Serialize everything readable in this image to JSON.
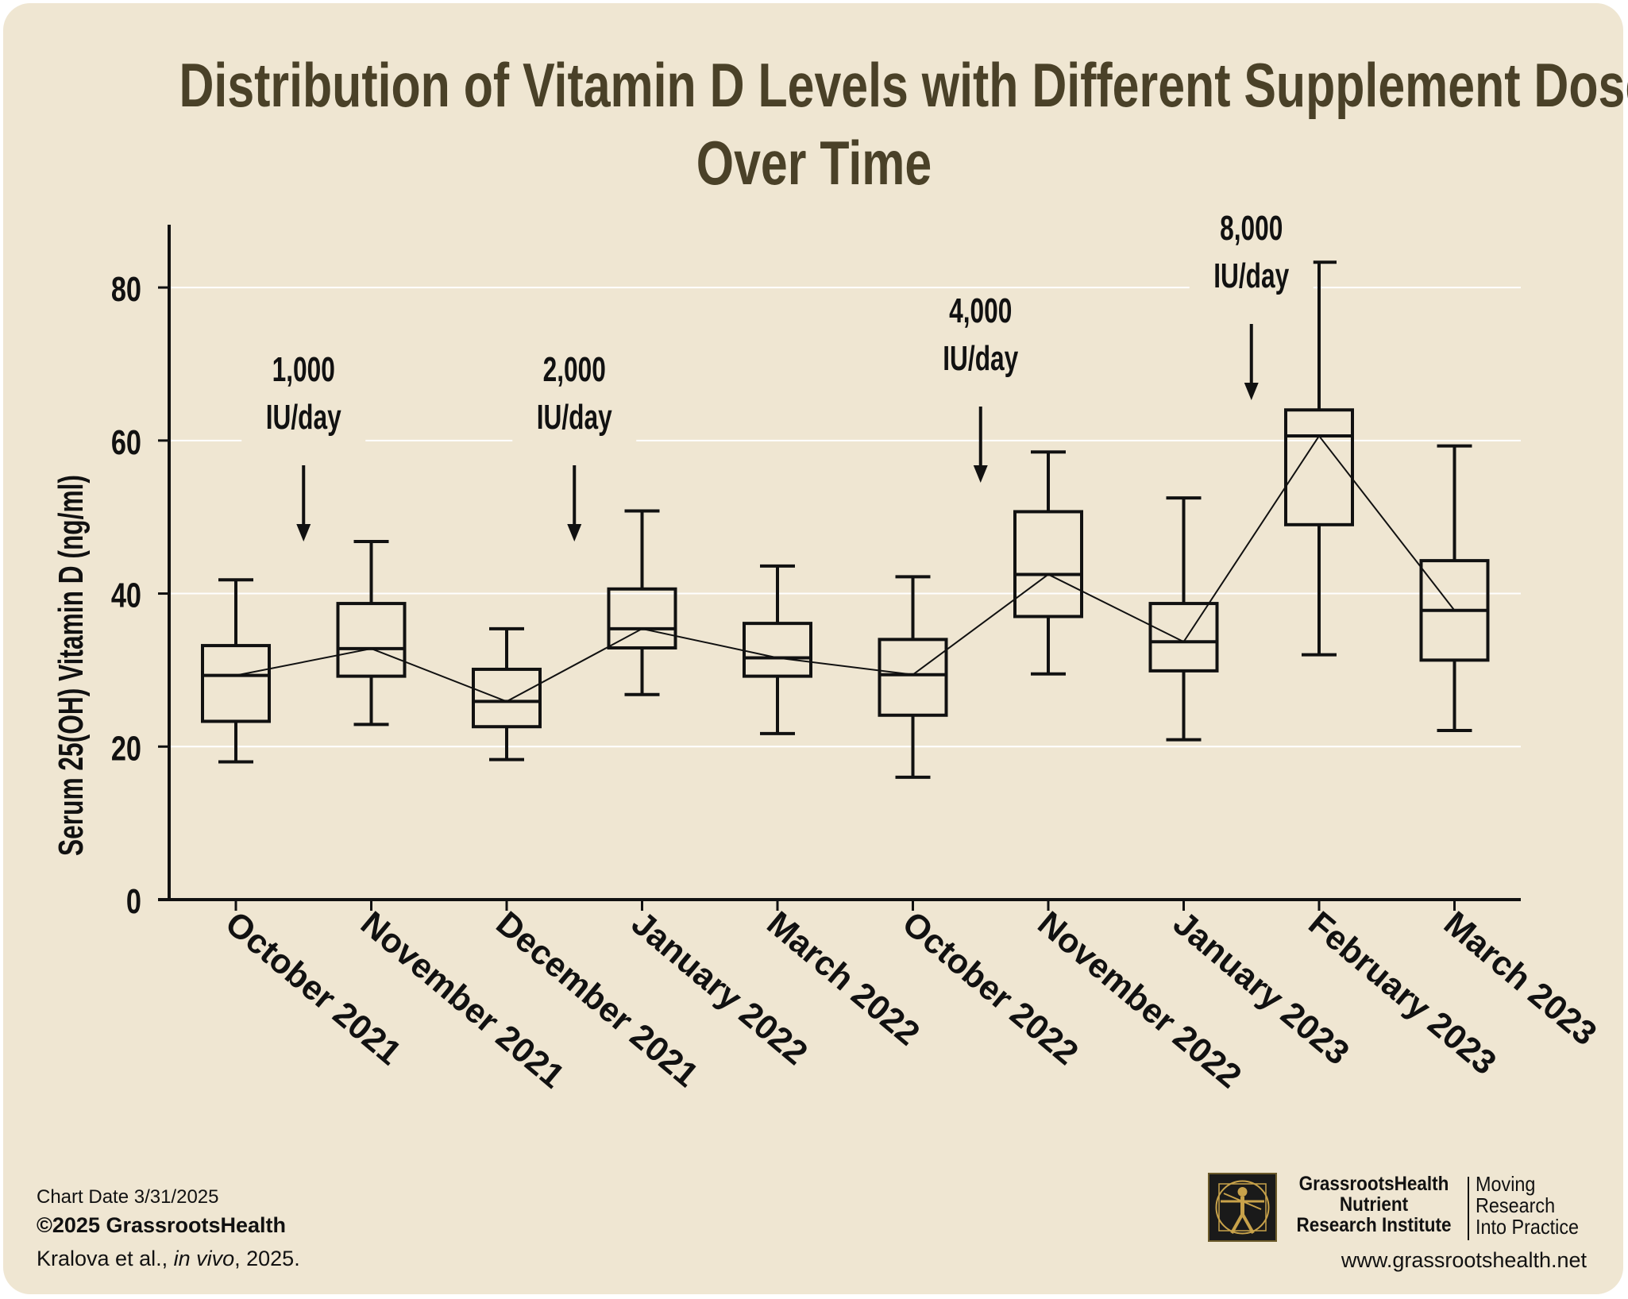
{
  "title_line1": "Distribution of Vitamin D Levels with Different Supplement Doses",
  "title_line2": "Over Time",
  "colors": {
    "background": "#efe6d2",
    "title": "#4a4128",
    "ink": "#111111",
    "grid": "#ffffff"
  },
  "footer": {
    "chart_date": "Chart Date 3/31/2025",
    "copyright": "©2025 GrassrootsHealth",
    "citation_authors": "Kralova et al., ",
    "citation_journal": "in vivo",
    "citation_year": ", 2025.",
    "brand_lines": [
      "GrassrootsHealth",
      "Nutrient",
      "Research Institute"
    ],
    "tagline_lines": [
      "Moving",
      "Research",
      "Into Practice"
    ],
    "website": "www.grassrootshealth.net",
    "logo_icon": "vitruvian-man-icon"
  },
  "chart_data": {
    "type": "box",
    "ylabel": "Serum 25(OH) Vitamin D (ng/ml)",
    "ylim": [
      0,
      88
    ],
    "yticks": [
      0,
      20,
      40,
      60,
      80
    ],
    "grid": true,
    "categories": [
      "October 2021",
      "November 2021",
      "December 2021",
      "January 2022",
      "March 2022",
      "October 2022",
      "November 2022",
      "January 2023",
      "February 2023",
      "March 2023"
    ],
    "boxes": [
      {
        "min": 18,
        "q1": 23.3,
        "median": 29.3,
        "q3": 33.2,
        "max": 41.8
      },
      {
        "min": 22.9,
        "q1": 29.2,
        "median": 32.8,
        "q3": 38.7,
        "max": 46.8
      },
      {
        "min": 18.3,
        "q1": 22.6,
        "median": 25.9,
        "q3": 30.1,
        "max": 35.4
      },
      {
        "min": 26.8,
        "q1": 32.9,
        "median": 35.4,
        "q3": 40.6,
        "max": 50.8
      },
      {
        "min": 21.7,
        "q1": 29.2,
        "median": 31.6,
        "q3": 36.1,
        "max": 43.6
      },
      {
        "min": 16,
        "q1": 24.1,
        "median": 29.4,
        "q3": 34,
        "max": 42.2
      },
      {
        "min": 29.5,
        "q1": 37,
        "median": 42.5,
        "q3": 50.7,
        "max": 58.5
      },
      {
        "min": 20.9,
        "q1": 29.9,
        "median": 33.7,
        "q3": 38.7,
        "max": 52.5
      },
      {
        "min": 32,
        "q1": 49,
        "median": 60.6,
        "q3": 64,
        "max": 83.3
      },
      {
        "min": 22.1,
        "q1": 31.3,
        "median": 37.8,
        "q3": 44.3,
        "max": 59.3
      }
    ],
    "annotations": [
      {
        "line1": "1,000",
        "line2": "IU/day",
        "after_category": 0
      },
      {
        "line1": "2,000",
        "line2": "IU/day",
        "after_category": 2
      },
      {
        "line1": "4,000",
        "line2": "IU/day",
        "after_category": 5
      },
      {
        "line1": "8,000",
        "line2": "IU/day",
        "after_category": 7
      }
    ]
  }
}
